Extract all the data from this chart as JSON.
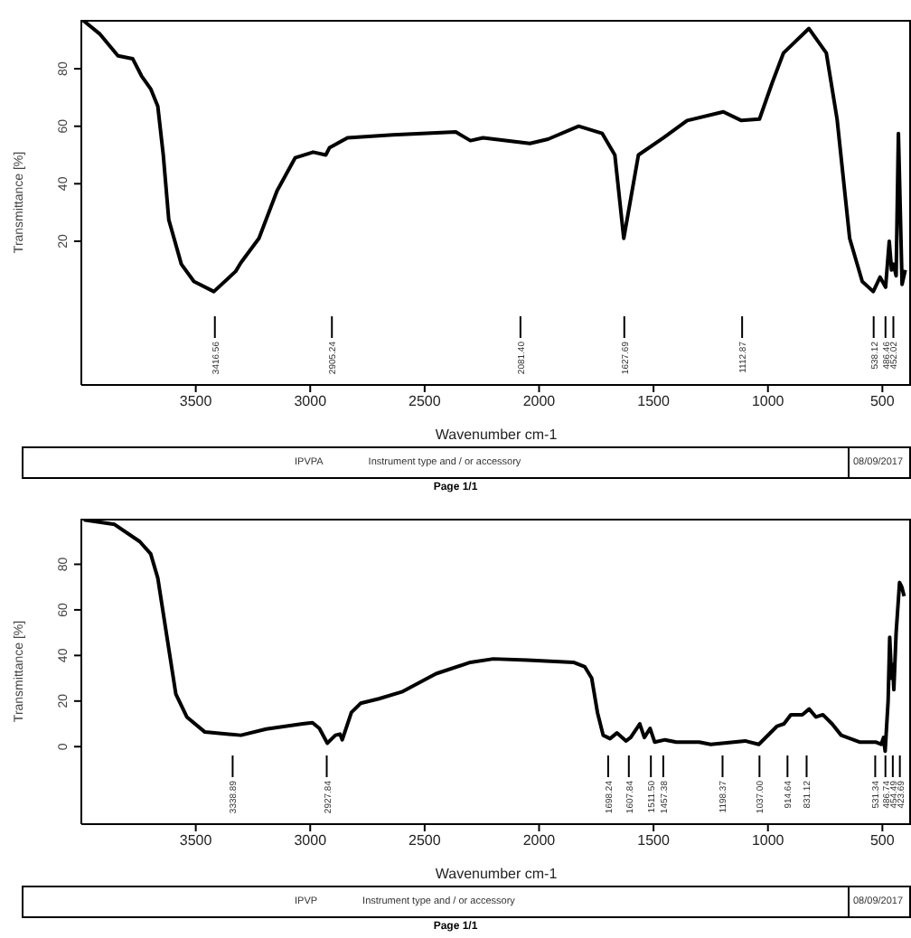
{
  "chart_data": [
    {
      "type": "line",
      "xlabel": "Wavenumber cm-1",
      "ylabel": "Transmittance [%]",
      "xlim": [
        4000,
        375
      ],
      "xticks": [
        3500,
        3000,
        2500,
        2000,
        1500,
        1000,
        500
      ],
      "ylim": [
        -30,
        97
      ],
      "yticks": [
        20,
        40,
        60,
        80
      ],
      "legend": false,
      "marker": "none",
      "line_style": "solid",
      "series": [
        {
          "color": "#000000",
          "x": [
            3995,
            3918,
            3840,
            3776,
            3737,
            3697,
            3666,
            3642,
            3618,
            3563,
            3508,
            3421,
            3326,
            3303,
            3224,
            3145,
            3066,
            2987,
            2932,
            2916,
            2837,
            2640,
            2364,
            2300,
            2245,
            2040,
            1961,
            1827,
            1724,
            1669,
            1630,
            1598,
            1566,
            1456,
            1353,
            1195,
            1116,
            1037,
            982,
            932,
            821,
            745,
            698,
            643,
            588,
            540,
            510,
            486,
            470,
            460,
            452,
            440,
            430,
            414,
            400
          ],
          "values": [
            97,
            92,
            84.5,
            83.5,
            77.5,
            73,
            67,
            50,
            27.5,
            12,
            6,
            2.5,
            9.5,
            12.5,
            21,
            37.5,
            49,
            51,
            50,
            52.5,
            56,
            57,
            58,
            55,
            56,
            54,
            55.5,
            60,
            57.5,
            50,
            21,
            35.5,
            50,
            56,
            62,
            65,
            62,
            62.5,
            75,
            85.5,
            94,
            85.5,
            62.5,
            21,
            6,
            2.5,
            7.5,
            4,
            20,
            10,
            12,
            8,
            57.5,
            5,
            10
          ]
        }
      ],
      "ref_lines": [
        {
          "axis": "x",
          "value": 3416.56,
          "label": "3416.56"
        },
        {
          "axis": "x",
          "value": 2905.24,
          "label": "2905.24"
        },
        {
          "axis": "x",
          "value": 2081.4,
          "label": "2081.40"
        },
        {
          "axis": "x",
          "value": 1627.69,
          "label": "1627.69"
        },
        {
          "axis": "x",
          "value": 1112.87,
          "label": "1112.87"
        },
        {
          "axis": "x",
          "value": 538.12,
          "label": "538.12"
        },
        {
          "axis": "x",
          "value": 486.46,
          "label": "486.46"
        },
        {
          "axis": "x",
          "value": 452.02,
          "label": "452.02"
        }
      ],
      "annotations": [
        "IPVPA",
        "Instrument type and / or accessory",
        "08/09/2017",
        "Page 1/1"
      ]
    },
    {
      "type": "line",
      "xlabel": "Wavenumber cm-1",
      "ylabel": "Transmittance [%]",
      "xlim": [
        4000,
        375
      ],
      "xticks": [
        3500,
        3000,
        2500,
        2000,
        1500,
        1000,
        500
      ],
      "ylim": [
        -34,
        100
      ],
      "yticks": [
        0,
        20,
        40,
        60,
        80
      ],
      "legend": false,
      "marker": "none",
      "line_style": "solid",
      "series": [
        {
          "color": "#000000",
          "x": [
            3989,
            3855,
            3745,
            3697,
            3666,
            3587,
            3539,
            3460,
            3303,
            3192,
            3034,
            2990,
            2960,
            2925,
            2890,
            2870,
            2860,
            2820,
            2780,
            2700,
            2600,
            2450,
            2300,
            2200,
            2050,
            1850,
            1800,
            1770,
            1745,
            1720,
            1690,
            1660,
            1620,
            1600,
            1560,
            1540,
            1515,
            1495,
            1450,
            1400,
            1300,
            1250,
            1200,
            1100,
            1040,
            960,
            930,
            900,
            850,
            820,
            790,
            760,
            720,
            680,
            600,
            530,
            505,
            495,
            488,
            475,
            468,
            460,
            455,
            450,
            440,
            425,
            415,
            405
          ],
          "values": [
            99.5,
            97.5,
            90,
            84.6,
            74,
            23,
            13,
            6.4,
            5,
            7.7,
            10,
            10.5,
            8,
            1.5,
            5,
            5.5,
            3,
            15,
            19,
            21,
            24,
            32,
            37,
            38.5,
            38,
            37,
            35,
            30,
            15,
            5,
            3.5,
            6,
            2.5,
            4,
            10,
            4,
            8,
            2,
            3,
            2,
            2,
            1,
            1.5,
            2.5,
            1,
            9,
            10,
            14,
            14,
            16.5,
            13,
            14,
            10,
            5,
            2,
            2,
            1,
            4,
            -2,
            20,
            48,
            30,
            36,
            25,
            50,
            72,
            70,
            66
          ]
        }
      ],
      "ref_lines": [
        {
          "axis": "x",
          "value": 3338.89,
          "label": "3338.89"
        },
        {
          "axis": "x",
          "value": 2927.84,
          "label": "2927.84"
        },
        {
          "axis": "x",
          "value": 1698.24,
          "label": "1698.24"
        },
        {
          "axis": "x",
          "value": 1607.84,
          "label": "1607.84"
        },
        {
          "axis": "x",
          "value": 1511.5,
          "label": "1511.50"
        },
        {
          "axis": "x",
          "value": 1457.38,
          "label": "1457.38"
        },
        {
          "axis": "x",
          "value": 1198.37,
          "label": "1198.37"
        },
        {
          "axis": "x",
          "value": 1037,
          "label": "1037.00"
        },
        {
          "axis": "x",
          "value": 914.64,
          "label": "914.64"
        },
        {
          "axis": "x",
          "value": 831.12,
          "label": "831.12"
        },
        {
          "axis": "x",
          "value": 531.34,
          "label": "531.34"
        },
        {
          "axis": "x",
          "value": 486.74,
          "label": "486.74"
        },
        {
          "axis": "x",
          "value": 454.49,
          "label": "454.49"
        },
        {
          "axis": "x",
          "value": 423.69,
          "label": "423.69"
        }
      ],
      "annotations": [
        "IPVP",
        "Instrument type and / or accessory",
        "08/09/2017",
        "Page 1/1"
      ]
    }
  ]
}
